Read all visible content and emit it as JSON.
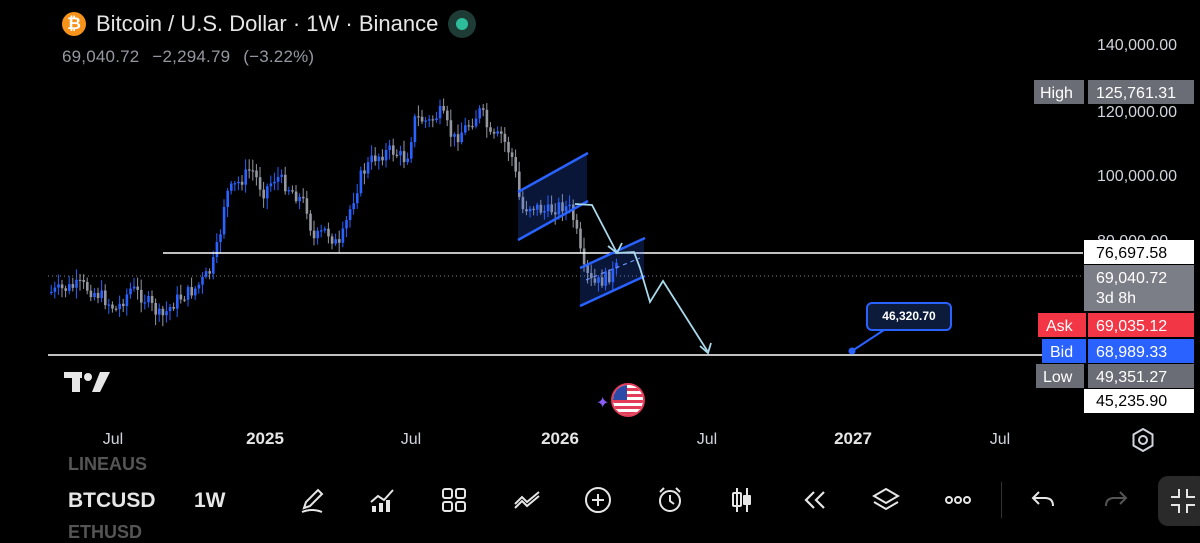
{
  "header": {
    "logo_glyph": "₿",
    "title": "Bitcoin / U.S. Dollar · 1W · Binance",
    "last_price": "69,040.72",
    "change": "−2,294.79",
    "change_pct": "(−3.22%)"
  },
  "price_axis": {
    "ticks": [
      "140,000.00",
      "120,000.00",
      "100,000.00",
      "80,000.00"
    ],
    "labels": {
      "high_tag": "High",
      "high_value": "125,761.31",
      "resistance_value": "76,697.58",
      "current_value": "69,040.72",
      "countdown": "3d 8h",
      "ask_tag": "Ask",
      "ask_value": "69,035.12",
      "bid_tag": "Bid",
      "bid_value": "68,989.33",
      "low_tag": "Low",
      "low_value": "49,351.27",
      "support_value": "45,235.90"
    }
  },
  "time_axis": {
    "ticks": [
      "Jul",
      "2025",
      "Jul",
      "2026",
      "Jul",
      "2027",
      "Jul"
    ]
  },
  "annotation": {
    "target_label": "46,320.70"
  },
  "colors": {
    "up": "#2962ff",
    "down": "#9598a1",
    "channel": "#2962ff",
    "arrow": "#a8d8ea",
    "ask": "#f23645",
    "bid": "#2962ff",
    "level": "#ffffff"
  },
  "chart_data": {
    "type": "candlestick",
    "symbol": "BTCUSD",
    "interval": "1W",
    "exchange": "Binance",
    "y_range": [
      40000,
      145000
    ],
    "x_ticks": [
      "Jul",
      "2025",
      "Jul",
      "2026",
      "Jul",
      "2027",
      "Jul"
    ],
    "levels": [
      {
        "name": "resistance",
        "value": 76697.58
      },
      {
        "name": "support",
        "value": 45235.9
      }
    ],
    "current_price": 69040.72,
    "high": 125761.31,
    "low": 49351.27,
    "ask": 69035.12,
    "bid": 68989.33,
    "target": 46320.7,
    "annotations": [
      "bear flag channel",
      "bear flag channel",
      "projected path arrow",
      "target callout 46,320.70"
    ]
  },
  "toolbar": {
    "symbol_prev": "LINEAUS",
    "symbol": "BTCUSD",
    "symbol_next": "ETHUSD",
    "interval": "1W",
    "tools": [
      "pencil-icon",
      "indicators-icon",
      "layout-grid-icon",
      "compare-icon",
      "add-icon",
      "alert-icon",
      "candle-type-icon",
      "replay-icon",
      "layers-icon",
      "more-icon",
      "undo-icon",
      "redo-icon",
      "fullscreen-icon"
    ]
  }
}
